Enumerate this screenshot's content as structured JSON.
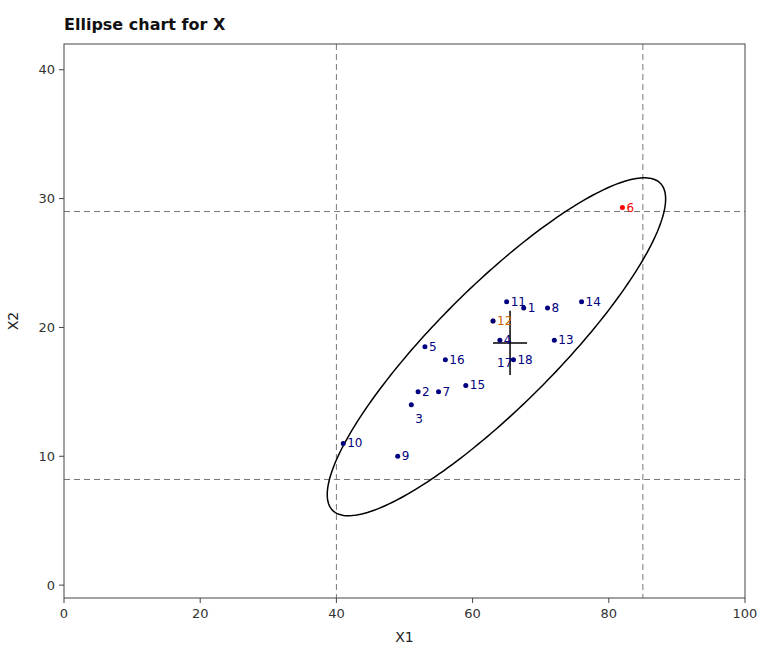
{
  "chart_data": {
    "type": "scatter",
    "title": "Ellipse chart for X",
    "x_label": "X1",
    "y_label": "X2",
    "xlim": [
      0,
      100
    ],
    "ylim": [
      -1,
      42
    ],
    "xticks": [
      0,
      20,
      40,
      60,
      80,
      100
    ],
    "yticks": [
      0,
      10,
      20,
      30,
      40
    ],
    "grid": false,
    "ids": [
      1,
      2,
      3,
      4,
      5,
      6,
      7,
      8,
      9,
      10,
      11,
      12,
      13,
      14,
      15,
      16,
      17,
      18
    ],
    "x": [
      67.5,
      52,
      51,
      64,
      53,
      82,
      55,
      71,
      49,
      41,
      65,
      63,
      72,
      76,
      59,
      56,
      63,
      66
    ],
    "values": [
      21.5,
      15.0,
      14.0,
      19.0,
      18.5,
      29.3,
      15.0,
      21.5,
      10.0,
      11.0,
      22.0,
      20.5,
      19.0,
      22.0,
      15.5,
      17.5,
      20.5,
      17.5
    ],
    "colors": [
      "#000080",
      "#000080",
      "#000080",
      "#000080",
      "#000080",
      "#ff0000",
      "#000080",
      "#000080",
      "#000080",
      "#000080",
      "#000080",
      "#cc6600",
      "#000080",
      "#000080",
      "#000080",
      "#000080",
      "#000080",
      "#000080"
    ],
    "reference_lines": {
      "x": [
        40,
        85
      ],
      "y": [
        8.2,
        29.0
      ],
      "color": "#777777",
      "line_style": "dashed"
    },
    "ellipse": {
      "center": [
        63.5,
        18.5
      ],
      "width": 55,
      "height": 11.5,
      "angle": 26,
      "color": "#000000"
    },
    "crosshair": {
      "x": 65.5,
      "y": 18.8,
      "half_width": 2.5,
      "half_height": 2.5,
      "color": "#000000"
    }
  }
}
